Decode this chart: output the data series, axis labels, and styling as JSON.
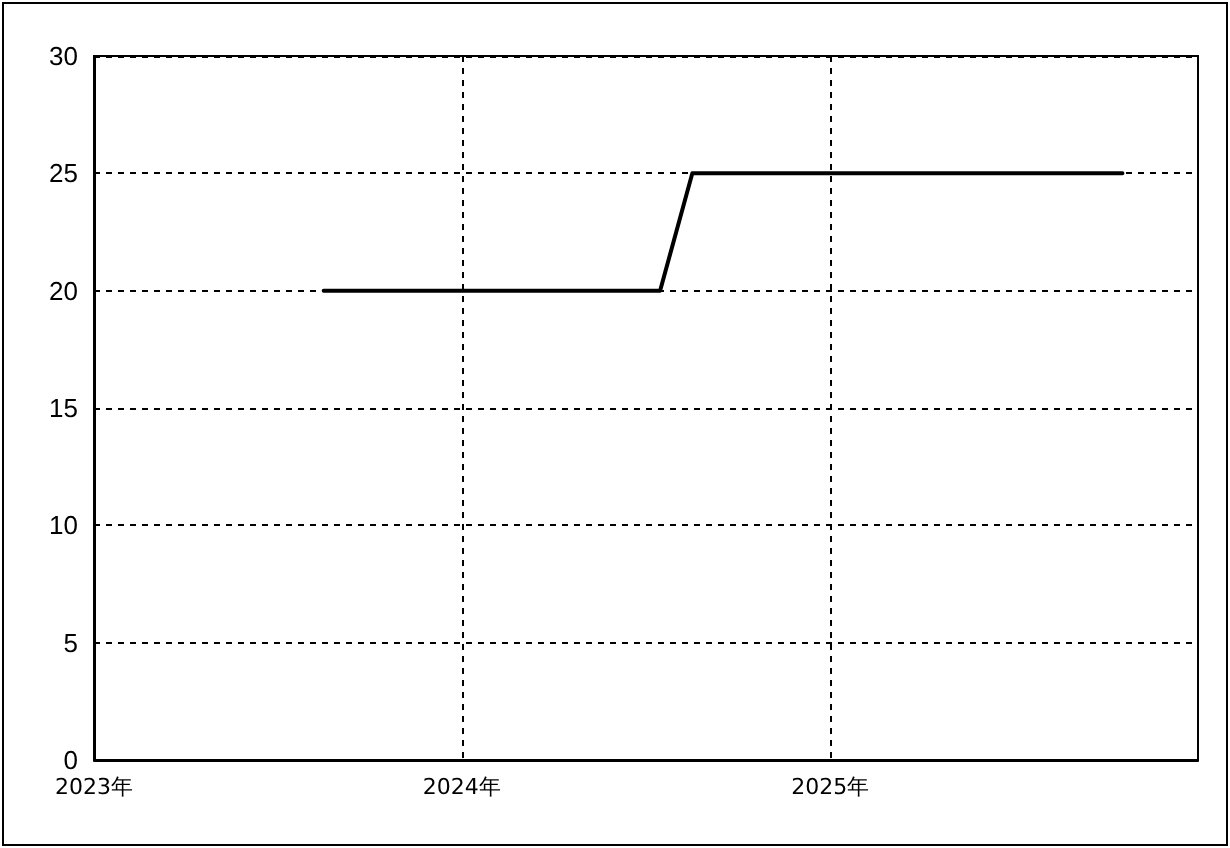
{
  "chart_data": {
    "type": "line",
    "x": [
      "2023-08-17",
      "2024-07-16",
      "2024-08-17",
      "2025-10-18"
    ],
    "values": [
      20,
      20,
      25,
      25
    ],
    "color": "#000000",
    "xlim": [
      "2023-01-01",
      "2026-01-01"
    ],
    "xticks": [
      {
        "value": "2023-01-01",
        "label": "2023年"
      },
      {
        "value": "2024-01-01",
        "label": "2024年"
      },
      {
        "value": "2025-01-01",
        "label": "2025年"
      }
    ],
    "ylim": [
      0,
      30
    ],
    "yticks": [
      0,
      5,
      10,
      15,
      20,
      25,
      30
    ],
    "grid": true,
    "marker": "none",
    "line_style": "solid"
  }
}
